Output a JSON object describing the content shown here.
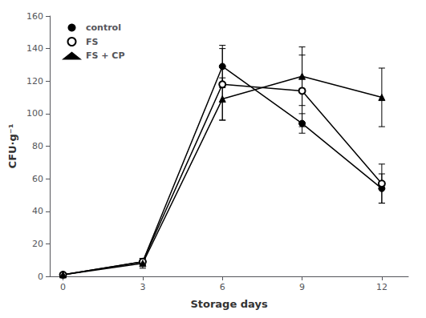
{
  "chart_data": {
    "type": "line",
    "xlabel": "Storage days",
    "ylabel": "CFU·g⁻¹",
    "x": [
      0,
      3,
      6,
      9,
      12
    ],
    "series": [
      {
        "name": "control",
        "color": "#000000",
        "marker": "circle",
        "values": [
          1,
          9,
          129,
          94,
          54
        ],
        "errors": [
          0.5,
          2,
          13,
          6,
          9
        ]
      },
      {
        "name": "FS",
        "color": "#000000",
        "marker": "open circle",
        "values": [
          1,
          9,
          118,
          114,
          57
        ],
        "errors": [
          0.5,
          2,
          22,
          22,
          12
        ]
      },
      {
        "name": "FS + CP",
        "color": "#000000",
        "marker": "triangle",
        "values": [
          1,
          8,
          109,
          123,
          110
        ],
        "errors": [
          0.5,
          3,
          13,
          18,
          18
        ]
      }
    ],
    "xlim": [
      -0.5,
      13
    ],
    "ylim": [
      0,
      160
    ],
    "xticks": [
      0,
      3,
      6,
      9,
      12
    ],
    "yticks": [
      0,
      20,
      40,
      60,
      80,
      100,
      120,
      140,
      160
    ],
    "legend": "upper left",
    "grid": false
  }
}
